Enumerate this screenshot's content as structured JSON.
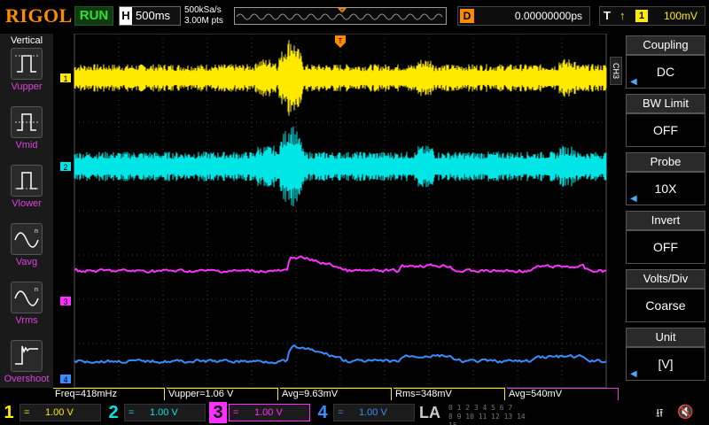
{
  "header": {
    "brand": "RIGOL",
    "run_state": "RUN",
    "horizontal_label": "H",
    "timebase": "500ms",
    "sample_rate": "500kSa/s",
    "memory_depth": "3.00M pts",
    "delay_label": "D",
    "delay_value": "0.00000000ps",
    "trigger_label": "T",
    "trigger_source": "1",
    "trigger_level": "100mV"
  },
  "left_panel": {
    "title": "Vertical",
    "items": [
      {
        "label": "Vupper",
        "icon": "vupper-icon"
      },
      {
        "label": "Vmid",
        "icon": "vmid-icon"
      },
      {
        "label": "Vlower",
        "icon": "vlower-icon"
      },
      {
        "label": "Vavg",
        "icon": "vavg-icon"
      },
      {
        "label": "Vrms",
        "icon": "vrms-icon"
      },
      {
        "label": "Overshoot",
        "icon": "overshoot-icon"
      }
    ]
  },
  "right_panel": {
    "channel_tab": "CH3",
    "items": [
      {
        "header": "Coupling",
        "value": "DC",
        "has_arrow": true
      },
      {
        "header": "BW Limit",
        "value": "OFF",
        "has_arrow": false
      },
      {
        "header": "Probe",
        "value": "10X",
        "has_arrow": true
      },
      {
        "header": "Invert",
        "value": "OFF",
        "has_arrow": false
      },
      {
        "header": "Volts/Div",
        "value": "Coarse",
        "has_arrow": false
      },
      {
        "header": "Unit",
        "value": "[V]",
        "has_arrow": true
      }
    ]
  },
  "measurements": [
    {
      "text": "Freq=418mHz",
      "color": "#ffea00"
    },
    {
      "text": "Vupper=1.06 V",
      "color": "#ffea00"
    },
    {
      "text": "Avg=9.63mV",
      "color": "#ffea00"
    },
    {
      "text": "Rms=348mV",
      "color": "#ffea00"
    },
    {
      "text": "Avg=540mV",
      "color": "#e040e0"
    }
  ],
  "channels": [
    {
      "number": "1",
      "coupling": "=",
      "scale": "1.00 V",
      "color": "#ffea00"
    },
    {
      "number": "2",
      "coupling": "=",
      "scale": "1.00 V",
      "color": "#00e5e5"
    },
    {
      "number": "3",
      "coupling": "=",
      "scale": "1.00 V",
      "color": "#ff30ff"
    },
    {
      "number": "4",
      "coupling": "=",
      "scale": "1.00 V",
      "color": "#3a8cff"
    }
  ],
  "la_label": "LA",
  "bits_rows": [
    "0 1 2 3  4 5 6 7",
    "8 9 10 11 12 13 14 15"
  ],
  "markers": {
    "ch1": "1",
    "ch2": "2",
    "ch3": "3",
    "ch4": "4",
    "trigger_pos": "T"
  },
  "colors": {
    "ch1": "#ffea00",
    "ch2": "#00e5e5",
    "ch3": "#ff30ff",
    "ch4": "#3a8cff",
    "grid": "#3c3c3c",
    "accent": "#ff8a00",
    "run": "#30e030"
  }
}
